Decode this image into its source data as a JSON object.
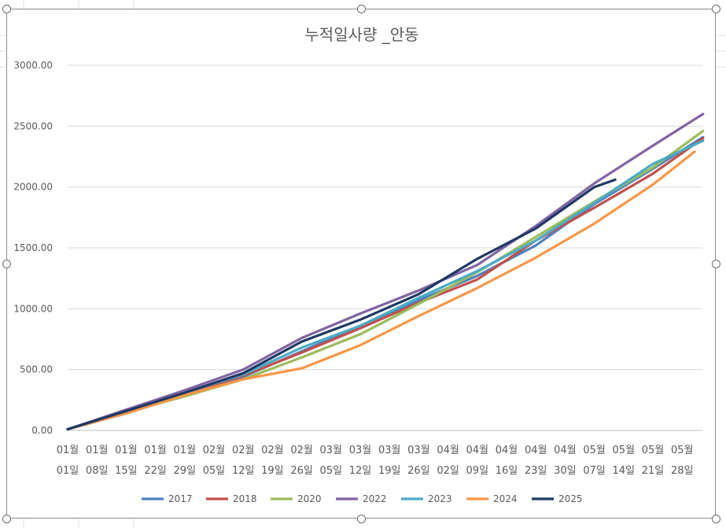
{
  "chart_data": {
    "type": "line",
    "title": "누적일사량 _안동",
    "xlabel": "",
    "ylabel": "",
    "ylim": [
      0,
      3000
    ],
    "yticks": [
      "0.00",
      "500.00",
      "1000.00",
      "1500.00",
      "2000.00",
      "2500.00",
      "3000.00"
    ],
    "x_tick_labels": [
      {
        "month": "01월",
        "day": "01일"
      },
      {
        "month": "01월",
        "day": "08일"
      },
      {
        "month": "01월",
        "day": "15일"
      },
      {
        "month": "01월",
        "day": "22일"
      },
      {
        "month": "01월",
        "day": "29일"
      },
      {
        "month": "02월",
        "day": "05일"
      },
      {
        "month": "02월",
        "day": "12일"
      },
      {
        "month": "02월",
        "day": "19일"
      },
      {
        "month": "02월",
        "day": "26일"
      },
      {
        "month": "03월",
        "day": "05일"
      },
      {
        "month": "03월",
        "day": "12일"
      },
      {
        "month": "03월",
        "day": "19일"
      },
      {
        "month": "03월",
        "day": "26일"
      },
      {
        "month": "04월",
        "day": "02일"
      },
      {
        "month": "04월",
        "day": "09일"
      },
      {
        "month": "04월",
        "day": "16일"
      },
      {
        "month": "04월",
        "day": "23일"
      },
      {
        "month": "04월",
        "day": "30일"
      },
      {
        "month": "05월",
        "day": "07일"
      },
      {
        "month": "05월",
        "day": "14일"
      },
      {
        "month": "05월",
        "day": "21일"
      },
      {
        "month": "05월",
        "day": "28일"
      }
    ],
    "grid": true,
    "legend_position": "bottom",
    "series": [
      {
        "name": "2017",
        "color": "#4f81bd",
        "x": [
          "01-01",
          "01-15",
          "01-29",
          "02-12",
          "02-26",
          "03-12",
          "03-26",
          "04-09",
          "04-23",
          "05-07",
          "05-21",
          "06-02"
        ],
        "y": [
          10,
          140,
          290,
          440,
          650,
          860,
          1070,
          1270,
          1520,
          1860,
          2150,
          2410
        ]
      },
      {
        "name": "2018",
        "color": "#c0504d",
        "x": [
          "01-01",
          "01-15",
          "01-29",
          "02-12",
          "02-26",
          "03-12",
          "03-26",
          "04-09",
          "04-23",
          "05-07",
          "05-21",
          "06-02"
        ],
        "y": [
          10,
          150,
          300,
          450,
          640,
          840,
          1050,
          1240,
          1560,
          1830,
          2110,
          2400
        ]
      },
      {
        "name": "2020",
        "color": "#9bbb59",
        "x": [
          "01-01",
          "01-15",
          "01-29",
          "02-12",
          "02-26",
          "03-12",
          "03-26",
          "04-09",
          "04-23",
          "05-07",
          "05-21",
          "06-02"
        ],
        "y": [
          10,
          150,
          280,
          420,
          600,
          790,
          1040,
          1300,
          1590,
          1880,
          2160,
          2460
        ]
      },
      {
        "name": "2022",
        "color": "#8064a2",
        "x": [
          "01-01",
          "01-15",
          "01-29",
          "02-12",
          "02-26",
          "03-12",
          "03-26",
          "04-09",
          "04-23",
          "05-07",
          "05-21",
          "06-02"
        ],
        "y": [
          10,
          170,
          330,
          500,
          760,
          960,
          1150,
          1360,
          1680,
          2030,
          2340,
          2600
        ]
      },
      {
        "name": "2023",
        "color": "#4bacc6",
        "x": [
          "01-01",
          "01-15",
          "01-29",
          "02-12",
          "02-26",
          "03-12",
          "03-26",
          "04-09",
          "04-23",
          "05-07",
          "05-21",
          "06-02"
        ],
        "y": [
          10,
          150,
          310,
          460,
          680,
          860,
          1090,
          1310,
          1560,
          1870,
          2190,
          2380
        ]
      },
      {
        "name": "2024",
        "color": "#f79646",
        "x": [
          "01-01",
          "01-15",
          "01-29",
          "02-12",
          "02-26",
          "03-12",
          "03-26",
          "04-09",
          "04-23",
          "05-07",
          "05-21",
          "05-31"
        ],
        "y": [
          10,
          140,
          290,
          420,
          510,
          700,
          940,
          1170,
          1420,
          1700,
          2020,
          2290
        ]
      },
      {
        "name": "2025",
        "color": "#1f3864",
        "x": [
          "01-01",
          "01-15",
          "01-29",
          "02-12",
          "02-26",
          "03-12",
          "03-26",
          "04-09",
          "04-23",
          "05-07",
          "05-12"
        ],
        "y": [
          10,
          160,
          310,
          470,
          730,
          910,
          1120,
          1410,
          1660,
          2000,
          2060
        ]
      }
    ]
  }
}
